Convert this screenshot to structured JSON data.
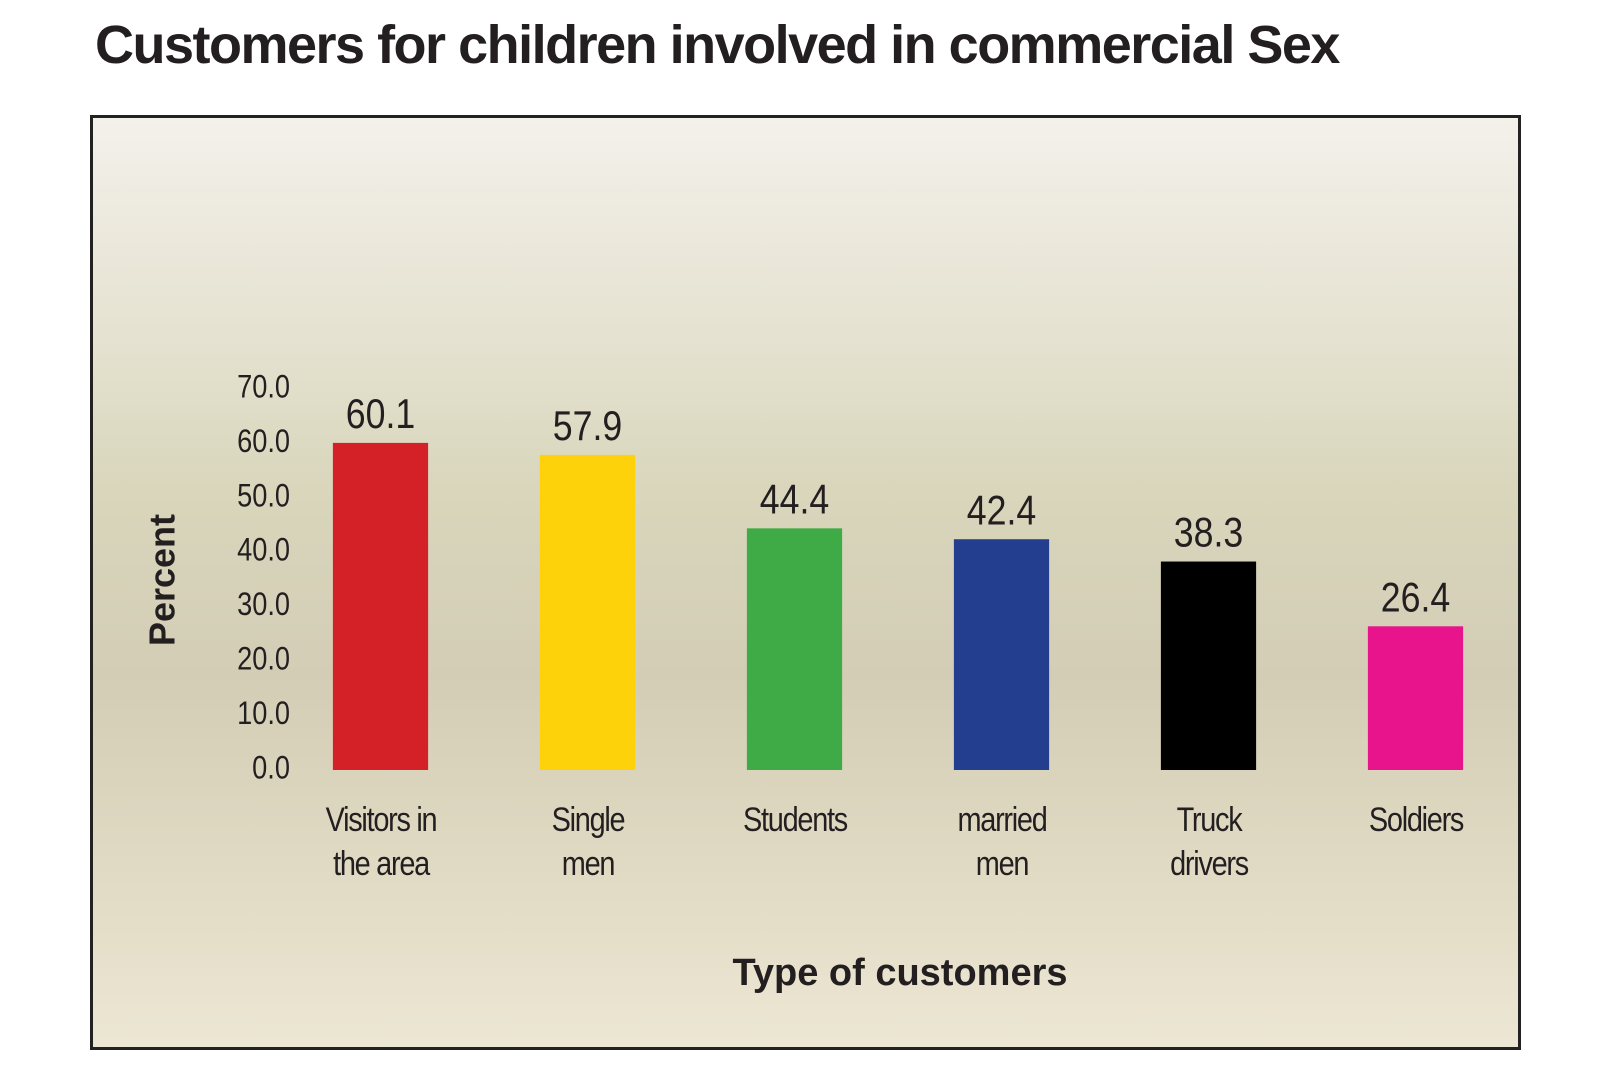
{
  "chart_data": {
    "type": "bar",
    "title": "Customers for children involved in commercial Sex",
    "x_label": "Type of customers",
    "y_label": "Percent",
    "categories": [
      "Visitors in\nthe area",
      "Single\nmen",
      "Students",
      "married\nmen",
      "Truck\ndrivers",
      "Soldiers"
    ],
    "values": [
      60.1,
      57.9,
      44.4,
      42.4,
      38.3,
      26.4
    ],
    "colors": [
      "#d42027",
      "#fdd20a",
      "#3eab47",
      "#243e8f",
      "#000000",
      "#e8148c"
    ],
    "ylim": [
      0,
      70
    ],
    "yticks": [
      {
        "value": 0,
        "label": "0.0"
      },
      {
        "value": 10,
        "label": "10.0"
      },
      {
        "value": 20,
        "label": "20.0"
      },
      {
        "value": 30,
        "label": "30.0"
      },
      {
        "value": 40,
        "label": "40.0"
      },
      {
        "value": 50,
        "label": "50.0"
      },
      {
        "value": 60,
        "label": "60.0"
      },
      {
        "value": 70,
        "label": "70.0"
      }
    ],
    "grid": false
  }
}
